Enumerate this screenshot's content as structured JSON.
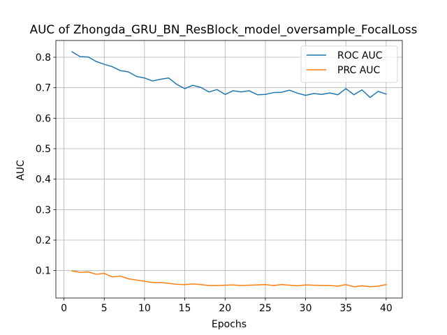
{
  "chart_data": {
    "type": "line",
    "title": "AUC of Zhongda_GRU_BN_ResBlock_model_oversample_FocalLoss",
    "xlabel": "Epochs",
    "ylabel": "AUC",
    "xlim": [
      -1,
      42
    ],
    "ylim": [
      0.01,
      0.855
    ],
    "xticks": [
      0,
      5,
      10,
      15,
      20,
      25,
      30,
      35,
      40
    ],
    "yticks": [
      0.1,
      0.2,
      0.3,
      0.4,
      0.5,
      0.6,
      0.7,
      0.8
    ],
    "grid": true,
    "legend_position": "top-right",
    "x": [
      1,
      2,
      3,
      4,
      5,
      6,
      7,
      8,
      9,
      10,
      11,
      12,
      13,
      14,
      15,
      16,
      17,
      18,
      19,
      20,
      21,
      22,
      23,
      24,
      25,
      26,
      27,
      28,
      29,
      30,
      31,
      32,
      33,
      34,
      35,
      36,
      37,
      38,
      39,
      40
    ],
    "series": [
      {
        "name": "ROC AUC",
        "color": "#1f77b4",
        "values": [
          0.818,
          0.802,
          0.801,
          0.786,
          0.777,
          0.769,
          0.756,
          0.752,
          0.737,
          0.732,
          0.722,
          0.728,
          0.732,
          0.711,
          0.697,
          0.708,
          0.701,
          0.686,
          0.694,
          0.678,
          0.69,
          0.686,
          0.69,
          0.677,
          0.678,
          0.684,
          0.685,
          0.692,
          0.682,
          0.675,
          0.681,
          0.678,
          0.683,
          0.677,
          0.697,
          0.677,
          0.693,
          0.668,
          0.688,
          0.679
        ]
      },
      {
        "name": "PRC AUC",
        "color": "#ff7f0e",
        "values": [
          0.099,
          0.094,
          0.096,
          0.088,
          0.091,
          0.079,
          0.082,
          0.073,
          0.069,
          0.065,
          0.061,
          0.061,
          0.058,
          0.055,
          0.054,
          0.056,
          0.054,
          0.051,
          0.051,
          0.052,
          0.053,
          0.051,
          0.052,
          0.053,
          0.054,
          0.051,
          0.054,
          0.052,
          0.05,
          0.053,
          0.052,
          0.051,
          0.051,
          0.049,
          0.054,
          0.047,
          0.05,
          0.047,
          0.049,
          0.054
        ]
      }
    ]
  }
}
